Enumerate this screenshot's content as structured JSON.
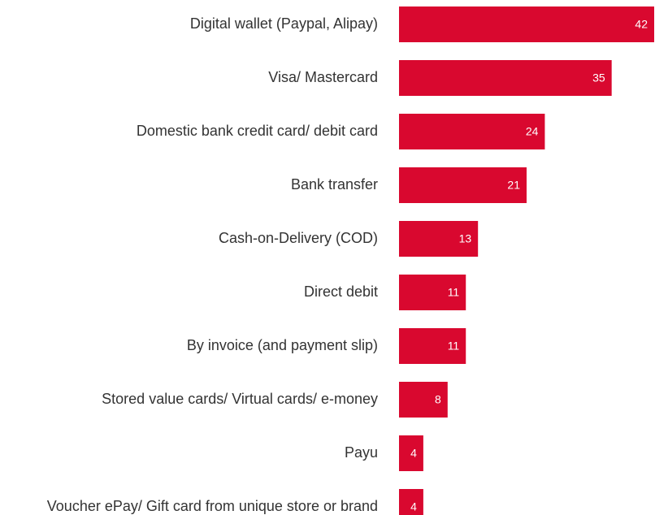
{
  "chart_data": {
    "type": "bar",
    "orientation": "horizontal",
    "categories": [
      "Digital wallet (Paypal, Alipay)",
      "Visa/ Mastercard",
      "Domestic bank credit card/ debit card",
      "Bank transfer",
      "Cash-on-Delivery (COD)",
      "Direct debit",
      "By invoice (and payment slip)",
      "Stored value cards/ Virtual cards/ e-money",
      "Payu",
      "Voucher ePay/ Gift card from unique store or brand"
    ],
    "values": [
      42,
      35,
      24,
      21,
      13,
      11,
      11,
      8,
      4,
      4
    ],
    "data_labels": [
      "42",
      "35",
      "24",
      "21",
      "13",
      "11",
      "11",
      "8",
      "4",
      "4"
    ],
    "xlim": [
      0,
      42
    ],
    "grid": false,
    "legend": "none",
    "bar_color": "#d9082f",
    "label_color": "#333333",
    "value_label_color": "#ffffff"
  }
}
